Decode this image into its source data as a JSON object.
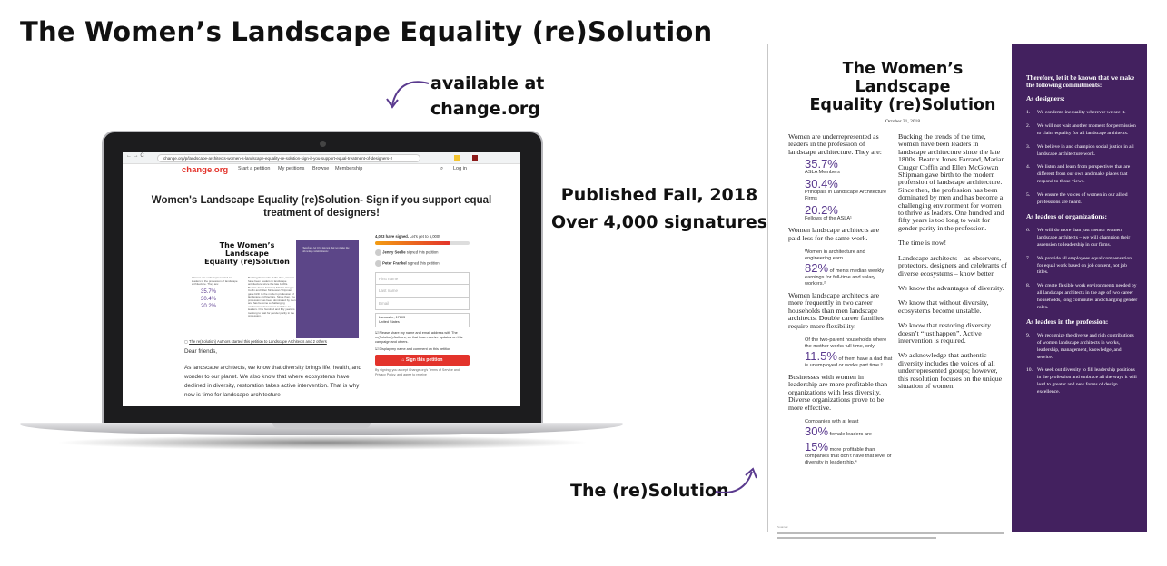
{
  "slide": {
    "title": "The Women’s Landscape Equality (re)Solution",
    "annotation_available": [
      "available at",
      "change.org"
    ],
    "annotation_published": [
      "Published Fall, 2018",
      "Over 4,000 signatures"
    ],
    "annotation_resolution": "The (re)Solution",
    "accent": "#43215f"
  },
  "browser": {
    "url": "change.org/p/landscape-architects-women-s-landscape-equality-re-solution-sign-if-you-support-equal-treatment-of-designers-2"
  },
  "site": {
    "logo": "change.org",
    "nav": [
      "Start a petition",
      "My petitions",
      "Browse",
      "Membership"
    ],
    "login": "Log in",
    "brand_color": "#e3332b"
  },
  "petition": {
    "title": "Women's Landscape Equality (re)Solution- Sign if you support equal treatment of designers!",
    "signed": "4,023 have signed.",
    "goal": "Let's get to 5,000!",
    "progress_percent": 80,
    "signers": [
      {
        "name": "Jenny Seelie",
        "action": "signed this petition"
      },
      {
        "name": "Peter Frankel",
        "action": "signed this petition"
      }
    ],
    "first_name_placeholder": "First name",
    "last_name_placeholder": "Last name",
    "email_placeholder": "Email",
    "location": [
      "Lancaster, 17603",
      "United States"
    ],
    "checkbox1": "Please share my name and email address with The re(Solution) Authors, so that I can receive updates on this campaign and others.",
    "checkbox2": "Display my name and comment on this petition",
    "sign_button": "Sign this petition",
    "terms": "By signing, you accept Change.org's Terms of Service and Privacy Policy, and agree to receive",
    "starter": "The re(Solution) Authors started this petition to Landscape Architects and 2 others",
    "greeting": "Dear friends,",
    "body": "As landscape architects, we know that diversity brings life, health, and wonder to our planet. We also know that where ecosystems have declined in diversity, restoration takes active intervention. That is why now is time for landscape architecture"
  },
  "document": {
    "title": [
      "The Women’s",
      "Landscape",
      "Equality (re)Solution"
    ],
    "date": "October 31, 2018",
    "left": {
      "p1": "Women are underrepresented as leaders in the profession of landscape architecture. They are:",
      "stats1": [
        {
          "value": "35.7%",
          "label": "ASLA Members"
        },
        {
          "value": "30.4%",
          "label": "Principals in Landscape Architecture Firms"
        },
        {
          "value": "20.2%",
          "label": "Fellows of the ASLA¹"
        }
      ],
      "p2": "Women landscape architects are paid less for the same work.",
      "s2_pre": "Women in architecture and engineering earn",
      "s2_value": "82%",
      "s2_post": "of men’s median weekly earnings for full-time and salary workers.²",
      "p3": "Women landscape architects are more frequently in two career households than men landscape architects.  Double career families require more flexibility.",
      "s3_pre": "Of the two-parent households where the mother works full time, only",
      "s3_value": "11.5%",
      "s3_post": "of them have a dad that is unemployed or works part time.³",
      "p4": "Businesses with women in leadership are more profitable than organizations with less diversity. Diverse organizations prove to be more effective.",
      "s4_pre": "Companies with at least",
      "s4_value1": "30%",
      "s4_mid": "female leaders are",
      "s4_value2": "15%",
      "s4_post": "more profitable than companies that don’t have that level of diversity in leadership.⁴"
    },
    "right": [
      "Bucking the trends of the time, women have been leaders in landscape architecture since the late 1800s.  Beatrix Jones Farrand, Marian Cruger Coffin and Ellen McGowan Shipman gave birth to the modern profession of landscape architecture. Since then, the profession has been dominated by men and has become a challenging environment for women to thrive as leaders. One hundred and fifty years is too long to wait for gender parity in the profession.",
      "The time is now!",
      "Landscape architects – as observers, protectors, designers and celebrants of diverse ecosystems – know better.",
      "We know the advantages of diversity.",
      "We know that without diversity, ecosystems become unstable.",
      "We know that restoring diversity doesn’t “just happen”. Active intervention is required.",
      "We acknowledge that authentic diversity includes the voices of all underrepresented groups; however, this resolution focuses on the unique situation of women."
    ],
    "footnote": "Sources:",
    "commitments": {
      "lead": "Therefore, let it be known that we make the following commitments:",
      "sections": [
        {
          "heading": "As designers:",
          "items": [
            {
              "n": "1.",
              "t": "We condemn inequality wherever we see it."
            },
            {
              "n": "2.",
              "t": "We will not wait another moment for permission to claim equality for all landscape architects."
            },
            {
              "n": "3.",
              "t": "We believe in and champion social justice in all landscape architecture work."
            },
            {
              "n": "4.",
              "t": "We listen and learn from perspectives that are different from our own and make places that respond to those views."
            },
            {
              "n": "5.",
              "t": "We ensure the voices of women in our allied professions are heard."
            }
          ]
        },
        {
          "heading": "As leaders of organizations:",
          "items": [
            {
              "n": "6.",
              "t": "We will do more than just mentor women landscape architects – we will champion their ascension to leadership in our firms."
            },
            {
              "n": "7.",
              "t": "We provide all employees equal compensation for equal work based on job content, not job titles."
            },
            {
              "n": "8.",
              "t": "We create flexible work environments needed by all landscape architects in the age of two career households, long commutes and changing gender roles."
            }
          ]
        },
        {
          "heading": "As leaders in the profession:",
          "items": [
            {
              "n": "9.",
              "t": "We recognize the diverse and rich contributions of women landscape architects in works, leadership, management, knowledge, and service."
            },
            {
              "n": "10.",
              "t": "We seek out diversity to fill leadership positions in the profession and embrace all the ways it will lead to greater and new forms of design excellence."
            }
          ]
        }
      ]
    }
  }
}
